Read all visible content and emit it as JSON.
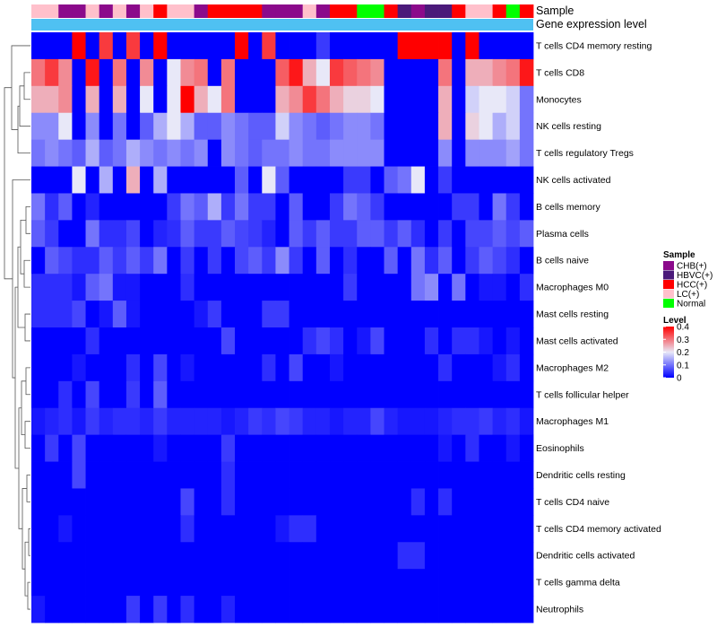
{
  "chart_data": {
    "type": "heatmap",
    "title": "",
    "annotation_rows": [
      "Sample",
      "Gene expression level"
    ],
    "sample_groups": {
      "CHB": "CHB(+)",
      "HBVC": "HBVC(+)",
      "HCC": "HCC(+)",
      "LC": "LC(+)",
      "Normal": "Normal"
    },
    "sample_colors": {
      "CHB": "#8B0A8B",
      "HBVC": "#4B1A7A",
      "HCC": "#FF0000",
      "LC": "#FFC0CB",
      "Normal": "#00FF00"
    },
    "gene_expression_color": "#4FC1F2",
    "sample_order": [
      "LC",
      "LC",
      "CHB",
      "CHB",
      "LC",
      "CHB",
      "LC",
      "CHB",
      "LC",
      "HCC",
      "LC",
      "LC",
      "CHB",
      "HCC",
      "HCC",
      "HCC",
      "HCC",
      "CHB",
      "CHB",
      "CHB",
      "LC",
      "CHB",
      "HCC",
      "HCC",
      "Normal",
      "Normal",
      "HCC",
      "HBVC",
      "CHB",
      "HBVC",
      "HBVC",
      "HCC",
      "LC",
      "LC",
      "HCC",
      "Normal",
      "HCC"
    ],
    "rows": [
      "T cells CD4 memory resting",
      "T cells CD8",
      "Monocytes",
      "NK cells resting",
      "T cells regulatory  Tregs",
      "NK cells activated",
      "B cells memory",
      "Plasma cells",
      "B cells naive",
      "Macrophages M0",
      "Mast cells resting",
      "Mast cells activated",
      "Macrophages M2",
      "T cells follicular helper",
      "Macrophages M1",
      "Eosinophils",
      "Dendritic cells resting",
      "T cells CD4 naive",
      "T cells CD4 memory activated",
      "Dendritic cells activated",
      "T cells gamma delta",
      "Neutrophils"
    ],
    "values": [
      [
        0.0,
        0.0,
        0.0,
        0.4,
        0.0,
        0.35,
        0.0,
        0.35,
        0.0,
        0.4,
        0.0,
        0.0,
        0.0,
        0.0,
        0.0,
        0.4,
        0.0,
        0.35,
        0.0,
        0.0,
        0.0,
        0.05,
        0.0,
        0.0,
        0.0,
        0.0,
        0.0,
        0.4,
        0.4,
        0.4,
        0.4,
        0.0,
        0.4,
        0.0,
        0.0,
        0.0,
        0.0
      ],
      [
        0.3,
        0.35,
        0.28,
        0.0,
        0.38,
        0.0,
        0.3,
        0.0,
        0.28,
        0.0,
        0.2,
        0.28,
        0.3,
        0.0,
        0.3,
        0.0,
        0.0,
        0.0,
        0.32,
        0.38,
        0.25,
        0.2,
        0.35,
        0.32,
        0.3,
        0.28,
        0.0,
        0.0,
        0.0,
        0.0,
        0.3,
        0.0,
        0.25,
        0.25,
        0.28,
        0.3,
        0.38
      ],
      [
        0.25,
        0.25,
        0.28,
        0.0,
        0.25,
        0.0,
        0.25,
        0.0,
        0.2,
        0.0,
        0.2,
        0.4,
        0.25,
        0.2,
        0.3,
        0.0,
        0.0,
        0.0,
        0.25,
        0.28,
        0.35,
        0.3,
        0.25,
        0.22,
        0.22,
        0.2,
        0.0,
        0.0,
        0.0,
        0.0,
        0.25,
        0.0,
        0.18,
        0.2,
        0.2,
        0.18,
        0.1
      ],
      [
        0.12,
        0.12,
        0.2,
        0.0,
        0.12,
        0.0,
        0.1,
        0.0,
        0.08,
        0.15,
        0.2,
        0.15,
        0.08,
        0.08,
        0.12,
        0.1,
        0.08,
        0.08,
        0.18,
        0.12,
        0.1,
        0.08,
        0.1,
        0.12,
        0.12,
        0.1,
        0.0,
        0.0,
        0.0,
        0.0,
        0.25,
        0.0,
        0.22,
        0.2,
        0.15,
        0.18,
        0.1
      ],
      [
        0.1,
        0.12,
        0.1,
        0.08,
        0.15,
        0.08,
        0.1,
        0.15,
        0.12,
        0.1,
        0.12,
        0.1,
        0.12,
        0.0,
        0.12,
        0.1,
        0.08,
        0.1,
        0.1,
        0.12,
        0.1,
        0.1,
        0.12,
        0.12,
        0.12,
        0.12,
        0.0,
        0.0,
        0.0,
        0.0,
        0.12,
        0.0,
        0.12,
        0.12,
        0.12,
        0.14,
        0.1
      ],
      [
        0.0,
        0.0,
        0.0,
        0.2,
        0.0,
        0.15,
        0.0,
        0.25,
        0.0,
        0.15,
        0.0,
        0.0,
        0.0,
        0.0,
        0.0,
        0.08,
        0.0,
        0.2,
        0.08,
        0.0,
        0.0,
        0.0,
        0.0,
        0.05,
        0.05,
        0.0,
        0.08,
        0.1,
        0.2,
        0.0,
        0.05,
        0.0,
        0.0,
        0.0,
        0.0,
        0.0,
        0.0
      ],
      [
        0.1,
        0.04,
        0.08,
        0.0,
        0.03,
        0.0,
        0.0,
        0.0,
        0.0,
        0.0,
        0.05,
        0.1,
        0.08,
        0.15,
        0.05,
        0.1,
        0.05,
        0.05,
        0.0,
        0.08,
        0.0,
        0.0,
        0.05,
        0.1,
        0.08,
        0.05,
        0.0,
        0.0,
        0.0,
        0.0,
        0.0,
        0.05,
        0.05,
        0.0,
        0.1,
        0.05,
        0.0
      ],
      [
        0.08,
        0.05,
        0.0,
        0.0,
        0.1,
        0.04,
        0.04,
        0.06,
        0.0,
        0.03,
        0.04,
        0.08,
        0.05,
        0.05,
        0.08,
        0.06,
        0.05,
        0.03,
        0.0,
        0.08,
        0.05,
        0.08,
        0.05,
        0.05,
        0.08,
        0.08,
        0.05,
        0.08,
        0.04,
        0.0,
        0.05,
        0.0,
        0.06,
        0.06,
        0.08,
        0.06,
        0.08
      ],
      [
        0.0,
        0.08,
        0.06,
        0.04,
        0.04,
        0.08,
        0.05,
        0.08,
        0.05,
        0.1,
        0.0,
        0.05,
        0.0,
        0.05,
        0.0,
        0.06,
        0.08,
        0.05,
        0.12,
        0.05,
        0.0,
        0.08,
        0.0,
        0.04,
        0.0,
        0.0,
        0.08,
        0.0,
        0.1,
        0.04,
        0.08,
        0.0,
        0.05,
        0.08,
        0.06,
        0.04,
        0.0
      ],
      [
        0.04,
        0.04,
        0.04,
        0.02,
        0.08,
        0.1,
        0.02,
        0.02,
        0.0,
        0.0,
        0.0,
        0.04,
        0.0,
        0.0,
        0.0,
        0.0,
        0.0,
        0.0,
        0.0,
        0.0,
        0.0,
        0.0,
        0.0,
        0.05,
        0.0,
        0.0,
        0.0,
        0.0,
        0.1,
        0.12,
        0.0,
        0.1,
        0.0,
        0.02,
        0.02,
        0.0,
        0.04
      ],
      [
        0.04,
        0.04,
        0.04,
        0.06,
        0.0,
        0.02,
        0.08,
        0.02,
        0.0,
        0.0,
        0.0,
        0.0,
        0.02,
        0.05,
        0.0,
        0.0,
        0.0,
        0.05,
        0.05,
        0.0,
        0.0,
        0.0,
        0.0,
        0.0,
        0.0,
        0.0,
        0.0,
        0.0,
        0.0,
        0.0,
        0.0,
        0.0,
        0.0,
        0.0,
        0.0,
        0.0,
        0.0
      ],
      [
        0.0,
        0.0,
        0.0,
        0.0,
        0.04,
        0.0,
        0.0,
        0.0,
        0.0,
        0.0,
        0.0,
        0.0,
        0.0,
        0.0,
        0.06,
        0.0,
        0.0,
        0.0,
        0.0,
        0.0,
        0.04,
        0.06,
        0.04,
        0.0,
        0.02,
        0.06,
        0.0,
        0.0,
        0.0,
        0.04,
        0.0,
        0.04,
        0.04,
        0.02,
        0.0,
        0.02,
        0.0
      ],
      [
        0.0,
        0.0,
        0.0,
        0.02,
        0.0,
        0.0,
        0.0,
        0.04,
        0.0,
        0.06,
        0.0,
        0.02,
        0.0,
        0.0,
        0.0,
        0.0,
        0.0,
        0.04,
        0.0,
        0.06,
        0.0,
        0.0,
        0.02,
        0.0,
        0.0,
        0.0,
        0.0,
        0.0,
        0.0,
        0.0,
        0.04,
        0.0,
        0.0,
        0.0,
        0.02,
        0.04,
        0.0
      ],
      [
        0.0,
        0.0,
        0.04,
        0.0,
        0.06,
        0.0,
        0.0,
        0.05,
        0.0,
        0.08,
        0.0,
        0.0,
        0.0,
        0.0,
        0.0,
        0.0,
        0.0,
        0.0,
        0.0,
        0.0,
        0.0,
        0.0,
        0.0,
        0.0,
        0.0,
        0.0,
        0.0,
        0.0,
        0.0,
        0.0,
        0.0,
        0.0,
        0.0,
        0.0,
        0.0,
        0.0,
        0.0
      ],
      [
        0.02,
        0.03,
        0.04,
        0.02,
        0.05,
        0.03,
        0.04,
        0.04,
        0.03,
        0.05,
        0.03,
        0.03,
        0.03,
        0.03,
        0.02,
        0.03,
        0.05,
        0.04,
        0.06,
        0.05,
        0.03,
        0.03,
        0.02,
        0.03,
        0.03,
        0.06,
        0.03,
        0.02,
        0.02,
        0.02,
        0.03,
        0.04,
        0.04,
        0.05,
        0.03,
        0.04,
        0.02
      ],
      [
        0.0,
        0.05,
        0.0,
        0.06,
        0.0,
        0.0,
        0.0,
        0.0,
        0.0,
        0.02,
        0.0,
        0.0,
        0.0,
        0.0,
        0.05,
        0.0,
        0.0,
        0.0,
        0.0,
        0.0,
        0.0,
        0.0,
        0.0,
        0.0,
        0.0,
        0.0,
        0.0,
        0.0,
        0.0,
        0.0,
        0.02,
        0.0,
        0.04,
        0.0,
        0.0,
        0.02,
        0.0
      ],
      [
        0.0,
        0.0,
        0.0,
        0.06,
        0.0,
        0.0,
        0.0,
        0.0,
        0.0,
        0.0,
        0.0,
        0.0,
        0.0,
        0.0,
        0.04,
        0.0,
        0.0,
        0.0,
        0.0,
        0.0,
        0.0,
        0.0,
        0.0,
        0.0,
        0.0,
        0.0,
        0.0,
        0.0,
        0.0,
        0.0,
        0.0,
        0.0,
        0.0,
        0.0,
        0.0,
        0.0,
        0.0
      ],
      [
        0.0,
        0.0,
        0.0,
        0.0,
        0.0,
        0.0,
        0.0,
        0.0,
        0.0,
        0.0,
        0.0,
        0.06,
        0.0,
        0.0,
        0.04,
        0.0,
        0.0,
        0.0,
        0.0,
        0.0,
        0.0,
        0.0,
        0.0,
        0.0,
        0.0,
        0.0,
        0.0,
        0.0,
        0.04,
        0.0,
        0.04,
        0.0,
        0.0,
        0.0,
        0.0,
        0.0,
        0.0
      ],
      [
        0.0,
        0.0,
        0.02,
        0.0,
        0.0,
        0.0,
        0.0,
        0.0,
        0.0,
        0.0,
        0.0,
        0.04,
        0.0,
        0.0,
        0.0,
        0.0,
        0.0,
        0.0,
        0.02,
        0.04,
        0.04,
        0.0,
        0.0,
        0.0,
        0.0,
        0.0,
        0.0,
        0.0,
        0.0,
        0.0,
        0.0,
        0.0,
        0.0,
        0.0,
        0.0,
        0.0,
        0.0
      ],
      [
        0.0,
        0.0,
        0.0,
        0.0,
        0.0,
        0.0,
        0.0,
        0.0,
        0.0,
        0.0,
        0.0,
        0.0,
        0.0,
        0.0,
        0.0,
        0.0,
        0.0,
        0.0,
        0.0,
        0.0,
        0.0,
        0.0,
        0.0,
        0.0,
        0.0,
        0.0,
        0.0,
        0.04,
        0.04,
        0.0,
        0.0,
        0.0,
        0.0,
        0.0,
        0.0,
        0.0,
        0.0
      ],
      [
        0.0,
        0.0,
        0.0,
        0.0,
        0.0,
        0.0,
        0.0,
        0.0,
        0.0,
        0.0,
        0.0,
        0.0,
        0.0,
        0.0,
        0.0,
        0.0,
        0.0,
        0.0,
        0.0,
        0.0,
        0.0,
        0.0,
        0.0,
        0.0,
        0.0,
        0.0,
        0.0,
        0.0,
        0.0,
        0.0,
        0.0,
        0.0,
        0.0,
        0.0,
        0.0,
        0.0,
        0.0
      ],
      [
        0.02,
        0.0,
        0.0,
        0.0,
        0.0,
        0.0,
        0.0,
        0.05,
        0.0,
        0.05,
        0.0,
        0.04,
        0.0,
        0.0,
        0.03,
        0.0,
        0.0,
        0.0,
        0.0,
        0.0,
        0.0,
        0.0,
        0.0,
        0.0,
        0.0,
        0.0,
        0.0,
        0.0,
        0.0,
        0.0,
        0.0,
        0.0,
        0.0,
        0.0,
        0.0,
        0.0,
        0.0
      ]
    ],
    "color_scale": {
      "min": 0,
      "max": 0.4,
      "stops": [
        {
          "value": 0,
          "color": "#0000FF"
        },
        {
          "value": 0.2,
          "color": "#E8E8F8"
        },
        {
          "value": 0.4,
          "color": "#FF0000"
        }
      ]
    },
    "legends": {
      "sample": {
        "title": "Sample",
        "items": [
          {
            "key": "CHB",
            "label": "CHB(+)"
          },
          {
            "key": "HBVC",
            "label": "HBVC(+)"
          },
          {
            "key": "HCC",
            "label": "HCC(+)"
          },
          {
            "key": "LC",
            "label": "LC(+)"
          },
          {
            "key": "Normal",
            "label": "Normal"
          }
        ]
      },
      "level": {
        "title": "Level",
        "ticks": [
          0.4,
          0.3,
          0.2,
          0.1,
          0
        ]
      }
    }
  }
}
